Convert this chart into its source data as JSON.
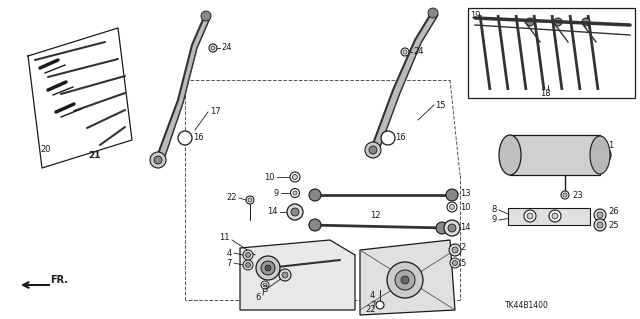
{
  "bg_color": "#ffffff",
  "line_color": "#1a1a1a",
  "fig_width": 6.4,
  "fig_height": 3.19,
  "dpi": 100,
  "diagram_code_id": "TK44B1400",
  "fr_label": "FR."
}
